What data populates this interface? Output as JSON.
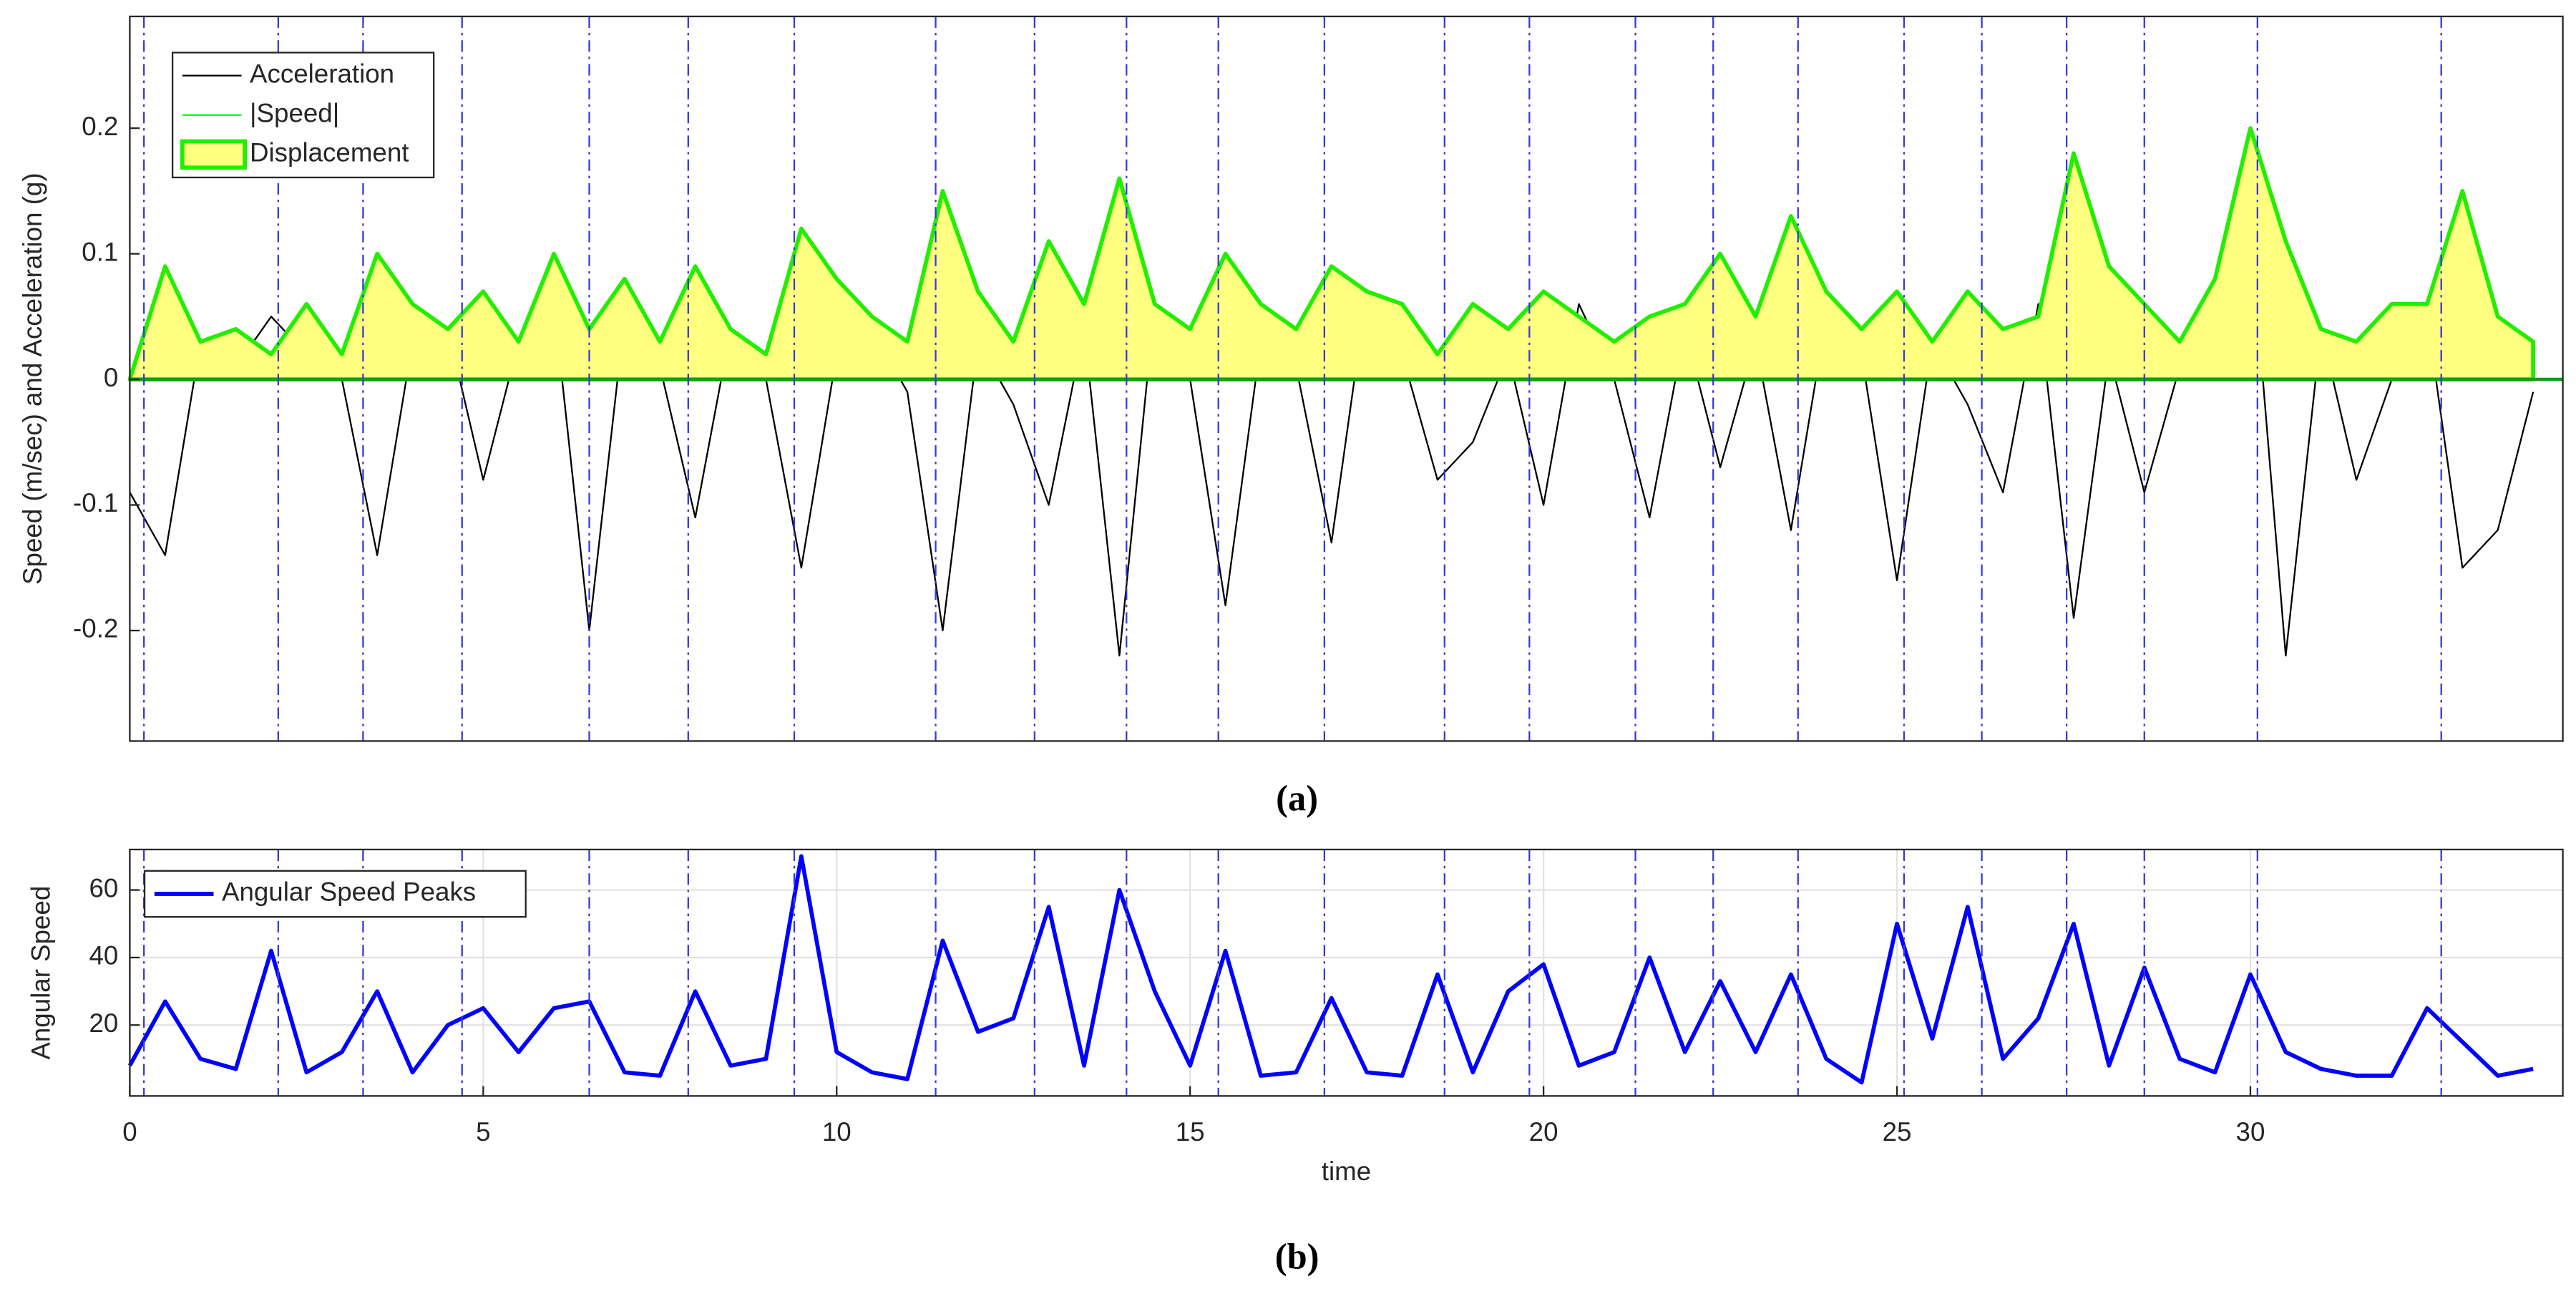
{
  "chart_data": [
    {
      "type": "line",
      "caption": "(a)",
      "ylabel": "Speed (m/sec) and Acceleration (g)",
      "xlim": [
        0,
        34.42
      ],
      "ylim": [
        -0.288,
        0.289
      ],
      "yticks": [
        -0.2,
        -0.1,
        0,
        0.1,
        0.2
      ],
      "grid": false,
      "legend": "upper left",
      "vlines": [
        0.2,
        2.1,
        3.3,
        4.7,
        6.5,
        7.9,
        9.4,
        11.4,
        12.8,
        14.1,
        15.4,
        16.9,
        18.6,
        19.8,
        21.3,
        22.4,
        23.6,
        25.1,
        26.2,
        27.4,
        28.5,
        30.1,
        32.7
      ],
      "x": [
        0,
        0.5,
        1,
        1.5,
        2,
        2.5,
        3,
        3.5,
        4,
        4.5,
        5,
        5.5,
        6,
        6.5,
        7,
        7.5,
        8,
        8.5,
        9,
        9.5,
        10,
        10.5,
        11,
        11.5,
        12,
        12.5,
        13,
        13.5,
        14,
        14.5,
        15,
        15.5,
        16,
        16.5,
        17,
        17.5,
        18,
        18.5,
        19,
        19.5,
        20,
        20.5,
        21,
        21.5,
        22,
        22.5,
        23,
        23.5,
        24,
        24.5,
        25,
        25.5,
        26,
        26.5,
        27,
        27.5,
        28,
        28.5,
        29,
        29.5,
        30,
        30.5,
        31,
        31.5,
        32,
        32.5,
        33,
        33.5,
        34
      ],
      "series": [
        {
          "name": "Acceleration",
          "color": "#000000",
          "values": [
            -0.09,
            -0.14,
            0.03,
            0.01,
            0.05,
            0.02,
            0,
            -0.14,
            0.03,
            0.04,
            -0.08,
            0.03,
            0.06,
            -0.2,
            0.05,
            0.01,
            -0.11,
            0.04,
            0,
            -0.15,
            0.02,
            0.04,
            -0.01,
            -0.2,
            0.03,
            -0.02,
            -0.1,
            0.04,
            -0.22,
            0.06,
            0,
            -0.18,
            0.03,
            0.01,
            -0.13,
            0.07,
            0.02,
            -0.08,
            -0.05,
            0.02,
            -0.1,
            0.06,
            0,
            -0.11,
            0.04,
            -0.07,
            0.03,
            -0.12,
            0.05,
            0.02,
            -0.16,
            0.03,
            -0.02,
            -0.09,
            0.06,
            -0.19,
            0.02,
            -0.09,
            0.01,
            0.03,
            0.12,
            -0.22,
            0.04,
            -0.08,
            0,
            0.05,
            -0.15,
            -0.12,
            -0.01
          ]
        },
        {
          "name": "|Speed|",
          "color": "#00ff00",
          "values": [
            0,
            0.09,
            0.03,
            0.04,
            0.02,
            0.06,
            0.02,
            0.1,
            0.06,
            0.04,
            0.07,
            0.03,
            0.1,
            0.04,
            0.08,
            0.03,
            0.09,
            0.04,
            0.02,
            0.12,
            0.08,
            0.05,
            0.03,
            0.15,
            0.07,
            0.03,
            0.11,
            0.06,
            0.16,
            0.06,
            0.04,
            0.1,
            0.06,
            0.04,
            0.09,
            0.07,
            0.06,
            0.02,
            0.06,
            0.04,
            0.07,
            0.05,
            0.03,
            0.05,
            0.06,
            0.1,
            0.05,
            0.13,
            0.07,
            0.04,
            0.07,
            0.03,
            0.07,
            0.04,
            0.05,
            0.18,
            0.09,
            0.06,
            0.03,
            0.08,
            0.2,
            0.11,
            0.04,
            0.03,
            0.06,
            0.06,
            0.15,
            0.05,
            0.03
          ]
        },
        {
          "name": "Displacement",
          "color": "#ffff80",
          "edgecolor": "#22ee00",
          "area": true,
          "values": [
            0,
            0.09,
            0.03,
            0.04,
            0.02,
            0.06,
            0.02,
            0.1,
            0.06,
            0.04,
            0.07,
            0.03,
            0.1,
            0.04,
            0.08,
            0.03,
            0.09,
            0.04,
            0.02,
            0.12,
            0.08,
            0.05,
            0.03,
            0.15,
            0.07,
            0.03,
            0.11,
            0.06,
            0.16,
            0.06,
            0.04,
            0.1,
            0.06,
            0.04,
            0.09,
            0.07,
            0.06,
            0.02,
            0.06,
            0.04,
            0.07,
            0.05,
            0.03,
            0.05,
            0.06,
            0.1,
            0.05,
            0.13,
            0.07,
            0.04,
            0.07,
            0.03,
            0.07,
            0.04,
            0.05,
            0.18,
            0.09,
            0.06,
            0.03,
            0.08,
            0.2,
            0.11,
            0.04,
            0.03,
            0.06,
            0.06,
            0.15,
            0.05,
            0.03
          ]
        }
      ]
    },
    {
      "type": "line",
      "caption": "(b)",
      "ylabel": "Angular Speed",
      "xlabel": "time",
      "xlim": [
        0,
        34.42
      ],
      "ylim": [
        -1,
        72
      ],
      "xticks": [
        0,
        5,
        10,
        15,
        20,
        25,
        30
      ],
      "yticks": [
        20,
        40,
        60
      ],
      "grid": true,
      "legend": "upper left",
      "vlines": [
        0.2,
        2.1,
        3.3,
        4.7,
        6.5,
        7.9,
        9.4,
        11.4,
        12.8,
        14.1,
        15.4,
        16.9,
        18.6,
        19.8,
        21.3,
        22.4,
        23.6,
        25.1,
        26.2,
        27.4,
        28.5,
        30.1,
        32.7
      ],
      "x": [
        0,
        0.5,
        1,
        1.5,
        2,
        2.5,
        3,
        3.5,
        4,
        4.5,
        5,
        5.5,
        6,
        6.5,
        7,
        7.5,
        8,
        8.5,
        9,
        9.5,
        10,
        10.5,
        11,
        11.5,
        12,
        12.5,
        13,
        13.5,
        14,
        14.5,
        15,
        15.5,
        16,
        16.5,
        17,
        17.5,
        18,
        18.5,
        19,
        19.5,
        20,
        20.5,
        21,
        21.5,
        22,
        22.5,
        23,
        23.5,
        24,
        24.5,
        25,
        25.5,
        26,
        26.5,
        27,
        27.5,
        28,
        28.5,
        29,
        29.5,
        30,
        30.5,
        31,
        31.5,
        32,
        32.5,
        33,
        33.5,
        34
      ],
      "series": [
        {
          "name": "Angular Speed Peaks",
          "color": "#0000ff",
          "values": [
            8,
            27,
            10,
            7,
            42,
            6,
            12,
            30,
            6,
            20,
            25,
            12,
            25,
            27,
            6,
            5,
            30,
            8,
            10,
            70,
            12,
            6,
            4,
            45,
            18,
            22,
            55,
            8,
            60,
            30,
            8,
            42,
            5,
            6,
            28,
            6,
            5,
            35,
            6,
            30,
            38,
            8,
            12,
            40,
            12,
            33,
            12,
            35,
            10,
            3,
            50,
            16,
            55,
            10,
            22,
            50,
            8,
            37,
            10,
            6,
            35,
            12,
            7,
            5,
            5,
            25,
            15,
            5,
            7
          ]
        }
      ]
    }
  ]
}
